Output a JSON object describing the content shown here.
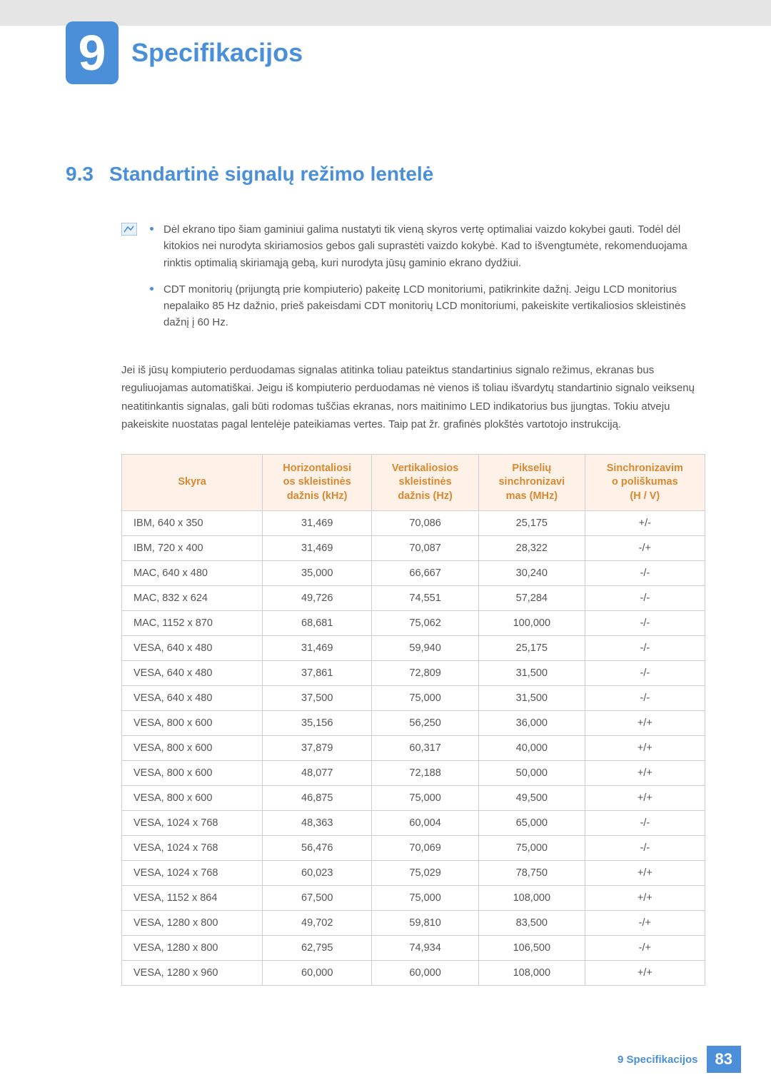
{
  "chapter": {
    "number": "9",
    "title": "Specifikacijos"
  },
  "section": {
    "number": "9.3",
    "title": "Standartinė signalų režimo lentelė"
  },
  "notes": [
    "Dėl ekrano tipo šiam gaminiui galima nustatyti tik vieną skyros vertę optimaliai vaizdo kokybei gauti. Todėl dėl kitokios nei nurodyta skiriamosios gebos gali suprastėti vaizdo kokybė. Kad to išvengtumėte, rekomenduojama rinktis optimalią skiriamąją gebą, kuri nurodyta jūsų gaminio ekrano dydžiui.",
    "CDT monitorių (prijungtą prie kompiuterio) pakeitę LCD monitoriumi, patikrinkite dažnį. Jeigu LCD monitorius nepalaiko 85 Hz dažnio, prieš pakeisdami CDT monitorių LCD monitoriumi, pakeiskite vertikaliosios skleistinės dažnį į 60 Hz."
  ],
  "body": "Jei iš jūsų kompiuterio perduodamas signalas atitinka toliau pateiktus standartinius signalo režimus, ekranas bus reguliuojamas automatiškai. Jeigu iš kompiuterio perduodamas nė vienos iš toliau išvardytų standartinio signalo veiksenų neatitinkantis signalas, gali būti rodomas tuščias ekranas, nors maitinimo LED indikatorius bus įjungtas. Tokiu atveju pakeiskite nuostatas pagal lentelėje pateikiamas vertes. Taip pat žr. grafinės plokštės vartotojo instrukciją.",
  "table": {
    "columns": [
      "Skyra",
      "Horizontaliosios skleistinės dažnis (kHz)",
      "Vertikaliosios skleistinės dažnis (Hz)",
      "Pikselių sinchronizavimas (MHz)",
      "Sinchronizavimo poliškumas (H / V)"
    ],
    "columns_wrapped": [
      [
        "Skyra"
      ],
      [
        "Horizontaliosi",
        "os skleistinės",
        "dažnis (kHz)"
      ],
      [
        "Vertikaliosios",
        "skleistinės",
        "dažnis (Hz)"
      ],
      [
        "Pikselių",
        "sinchronizavi",
        "mas (MHz)"
      ],
      [
        "Sinchronizavim",
        "o poliškumas",
        "(H / V)"
      ]
    ],
    "rows": [
      [
        "IBM, 640 x 350",
        "31,469",
        "70,086",
        "25,175",
        "+/-"
      ],
      [
        "IBM, 720 x 400",
        "31,469",
        "70,087",
        "28,322",
        "-/+"
      ],
      [
        "MAC, 640 x 480",
        "35,000",
        "66,667",
        "30,240",
        "-/-"
      ],
      [
        "MAC, 832 x 624",
        "49,726",
        "74,551",
        "57,284",
        "-/-"
      ],
      [
        "MAC, 1152 x 870",
        "68,681",
        "75,062",
        "100,000",
        "-/-"
      ],
      [
        "VESA, 640 x 480",
        "31,469",
        "59,940",
        "25,175",
        "-/-"
      ],
      [
        "VESA, 640 x 480",
        "37,861",
        "72,809",
        "31,500",
        "-/-"
      ],
      [
        "VESA, 640 x 480",
        "37,500",
        "75,000",
        "31,500",
        "-/-"
      ],
      [
        "VESA, 800 x 600",
        "35,156",
        "56,250",
        "36,000",
        "+/+"
      ],
      [
        "VESA, 800 x 600",
        "37,879",
        "60,317",
        "40,000",
        "+/+"
      ],
      [
        "VESA, 800 x 600",
        "48,077",
        "72,188",
        "50,000",
        "+/+"
      ],
      [
        "VESA, 800 x 600",
        "46,875",
        "75,000",
        "49,500",
        "+/+"
      ],
      [
        "VESA, 1024 x 768",
        "48,363",
        "60,004",
        "65,000",
        "-/-"
      ],
      [
        "VESA, 1024 x 768",
        "56,476",
        "70,069",
        "75,000",
        "-/-"
      ],
      [
        "VESA, 1024 x 768",
        "60,023",
        "75,029",
        "78,750",
        "+/+"
      ],
      [
        "VESA, 1152 x 864",
        "67,500",
        "75,000",
        "108,000",
        "+/+"
      ],
      [
        "VESA, 1280 x 800",
        "49,702",
        "59,810",
        "83,500",
        "-/+"
      ],
      [
        "VESA, 1280 x 800",
        "62,795",
        "74,934",
        "106,500",
        "-/+"
      ],
      [
        "VESA, 1280 x 960",
        "60,000",
        "60,000",
        "108,000",
        "+/+"
      ]
    ],
    "header_bg": "#fdf1e8",
    "header_color": "#d8892f",
    "border_color": "#cfcfcf"
  },
  "footer": {
    "label": "9 Specifikacijos",
    "page": "83"
  },
  "colors": {
    "accent": "#4a8fd8",
    "text": "#555555"
  }
}
